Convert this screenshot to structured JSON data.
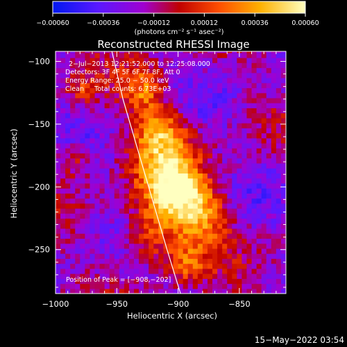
{
  "chart_data": {
    "type": "heatmap",
    "title": "Reconstructed RHESSI Image",
    "xlabel": "Heliocentric X (arcsec)",
    "ylabel": "Heliocentric Y (arcsec)",
    "xlim": [
      -1000,
      -812
    ],
    "ylim": [
      -285,
      -92
    ],
    "x_ticks": [
      -1000,
      -950,
      -900,
      -850
    ],
    "x_tick_labels": [
      "−1000",
      "−950",
      "−900",
      "−850"
    ],
    "y_ticks": [
      -100,
      -150,
      -200,
      -250
    ],
    "y_tick_labels": [
      "−100",
      "−150",
      "−200",
      "−250"
    ],
    "colorbar": {
      "min": -0.0006,
      "max": 0.0006,
      "ticks": [
        -0.0006,
        -0.00036,
        -0.00012,
        0.00012,
        0.00036,
        0.0006
      ],
      "tick_labels": [
        "−0.00060",
        "−0.00036",
        "−0.00012",
        "0.00012",
        "0.00036",
        "0.00060"
      ],
      "units": "(photons cm⁻² s⁻¹ asec⁻²)"
    },
    "annotations": [
      "2−Jul−2013 12:21:52.000 to 12:25:08.000",
      "Detectors: 3F 4F 5F 6F 7F 8F, Att 0",
      "Energy Range: 25.0 − 50.0 keV",
      "Clean     Total counts: 6.73E+03"
    ],
    "peak_label": "Position of Peak = [−908,−202]",
    "peak": [
      -908,
      -202
    ],
    "limb_curve": [
      [
        -954,
        -92
      ],
      [
        -945,
        -130
      ],
      [
        -933,
        -170
      ],
      [
        -921,
        -210
      ],
      [
        -909,
        -250
      ],
      [
        -898,
        -285
      ]
    ],
    "sources": [
      {
        "x": -908,
        "y": -202,
        "sigma": 18,
        "amp": 1.0
      },
      {
        "x": -917,
        "y": -160,
        "sigma": 16,
        "amp": 0.75
      },
      {
        "x": -930,
        "y": -124,
        "sigma": 12,
        "amp": 0.55
      },
      {
        "x": -885,
        "y": -225,
        "sigma": 17,
        "amp": 0.7
      },
      {
        "x": -925,
        "y": -240,
        "sigma": 14,
        "amp": 0.55
      },
      {
        "x": -896,
        "y": -262,
        "sigma": 11,
        "amp": 0.45
      },
      {
        "x": -985,
        "y": -180,
        "sigma": 10,
        "amp": 0.35
      },
      {
        "x": -980,
        "y": -125,
        "sigma": 8,
        "amp": 0.3
      }
    ]
  },
  "timestamp": "15−May−2022 03:54"
}
